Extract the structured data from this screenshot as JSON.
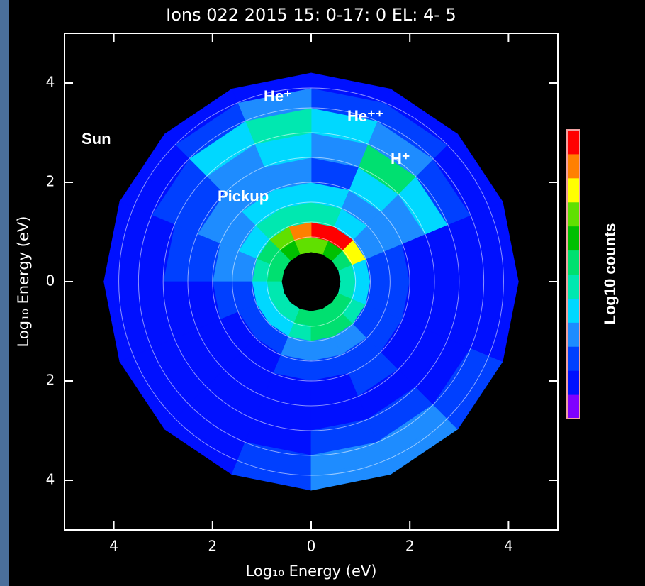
{
  "chart_data": {
    "type": "polar_contour",
    "title": "Ions 022 2015 15: 0-17: 0 EL: 4- 5",
    "xlabel": "Log₁₀ Energy (eV)",
    "ylabel": "Log₁₀ Energy (eV)",
    "colorbar_label": "Log10 counts",
    "xlim": [
      -5,
      5
    ],
    "ylim": [
      -5,
      5
    ],
    "xticks": [
      {
        "value": -4,
        "label": "4"
      },
      {
        "value": -2,
        "label": "2"
      },
      0,
      2,
      4
    ],
    "yticks": [
      {
        "value": -4,
        "label": "4"
      },
      {
        "value": -2,
        "label": "2"
      },
      0,
      2,
      4
    ],
    "levels": [
      "#7f00ff",
      "#0010ff",
      "#0040ff",
      "#1e8cff",
      "#00d8ff",
      "#00e8b0",
      "#00e070",
      "#00c000",
      "#60e000",
      "#ffff00",
      "#ff8000",
      "#ff0000"
    ],
    "ring_edges": [
      0.6,
      0.9,
      1.2,
      1.6,
      2.0,
      2.5,
      3.0,
      3.5,
      3.9,
      4.2
    ],
    "values": [
      [
        5,
        6,
        7,
        8,
        8,
        7,
        6,
        6,
        5,
        5,
        5,
        6,
        6,
        6,
        6,
        5
      ],
      [
        4,
        9,
        11,
        11,
        10,
        8,
        6,
        5,
        4,
        4,
        4,
        5,
        6,
        6,
        5,
        4
      ],
      [
        2,
        3,
        4,
        5,
        5,
        5,
        4,
        3,
        2,
        2,
        2,
        3,
        3,
        3,
        2,
        2
      ],
      [
        2,
        3,
        3,
        4,
        4,
        4,
        3,
        3,
        2,
        1,
        1,
        2,
        2,
        2,
        2,
        2
      ],
      [
        1,
        3,
        4,
        2,
        3,
        3,
        3,
        2,
        1,
        1,
        1,
        1,
        1,
        2,
        1,
        1
      ],
      [
        1,
        4,
        6,
        3,
        4,
        3,
        2,
        2,
        1,
        1,
        1,
        1,
        1,
        1,
        1,
        1
      ],
      [
        1,
        2,
        3,
        4,
        5,
        4,
        2,
        1,
        1,
        1,
        1,
        1,
        2,
        2,
        1,
        1
      ],
      [
        1,
        1,
        2,
        2,
        3,
        2,
        1,
        1,
        1,
        1,
        1,
        2,
        3,
        3,
        2,
        1
      ],
      [
        1,
        1,
        1,
        1,
        1,
        1,
        1,
        1,
        1,
        1,
        1,
        2,
        3,
        3,
        2,
        1
      ]
    ],
    "annotations": [
      "Sun",
      "He⁺",
      "He⁺⁺",
      "H⁺",
      "Pickup"
    ]
  }
}
